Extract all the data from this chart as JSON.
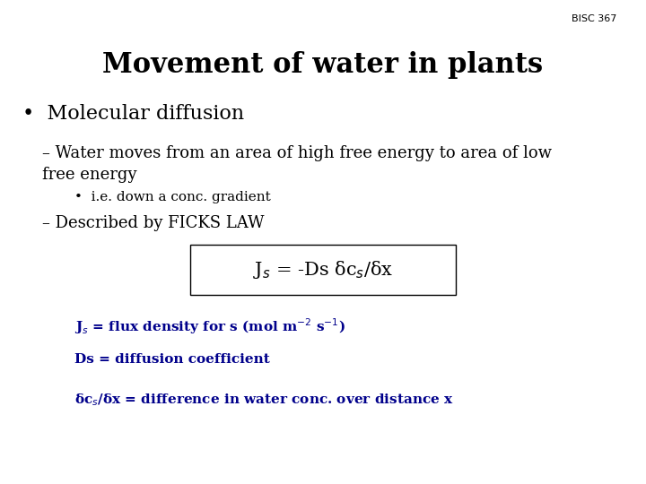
{
  "title": "Movement of water in plants",
  "course_code": "BISC 367",
  "background_color": "#ffffff",
  "title_color": "#000000",
  "title_fontsize": 22,
  "title_bold": true,
  "course_fontsize": 8,
  "bullet1": "Molecular diffusion",
  "bullet1_fontsize": 16,
  "sub1_line1": "– Water moves from an area of high free energy to area of low",
  "sub1_line2": "free energy",
  "sub1_fontsize": 13,
  "sub_sub1": "•  i.e. down a conc. gradient",
  "sub_sub1_fontsize": 11,
  "sub2": "– Described by FICKS LAW",
  "sub2_fontsize": 13,
  "equation": "J$_s$ = -Ds δc$_s$/δx",
  "equation_fontsize": 15,
  "def1": "J$_s$ = flux density for s (mol m$^{-2}$ s$^{-1}$)",
  "def2": "Ds = diffusion coefficient",
  "def3": "δc$_s$/δx = difference in water conc. over distance x",
  "def_fontsize": 11,
  "def_color": "#00008B",
  "text_color": "#000000"
}
